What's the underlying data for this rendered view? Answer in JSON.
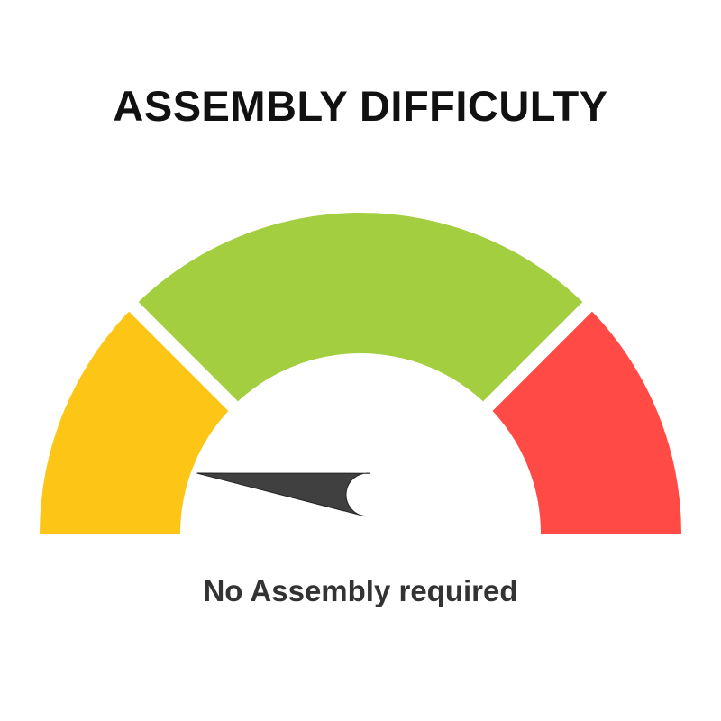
{
  "title": "ASSEMBLY DIFFICULTY",
  "caption": "No Assembly required",
  "gauge": {
    "segments": [
      {
        "id": "low",
        "color": "#FDC516"
      },
      {
        "id": "medium",
        "color": "#A3CE3F"
      },
      {
        "id": "high",
        "color": "#FF4A45"
      }
    ],
    "needle_color": "#404040",
    "needle_level": 0.04
  }
}
